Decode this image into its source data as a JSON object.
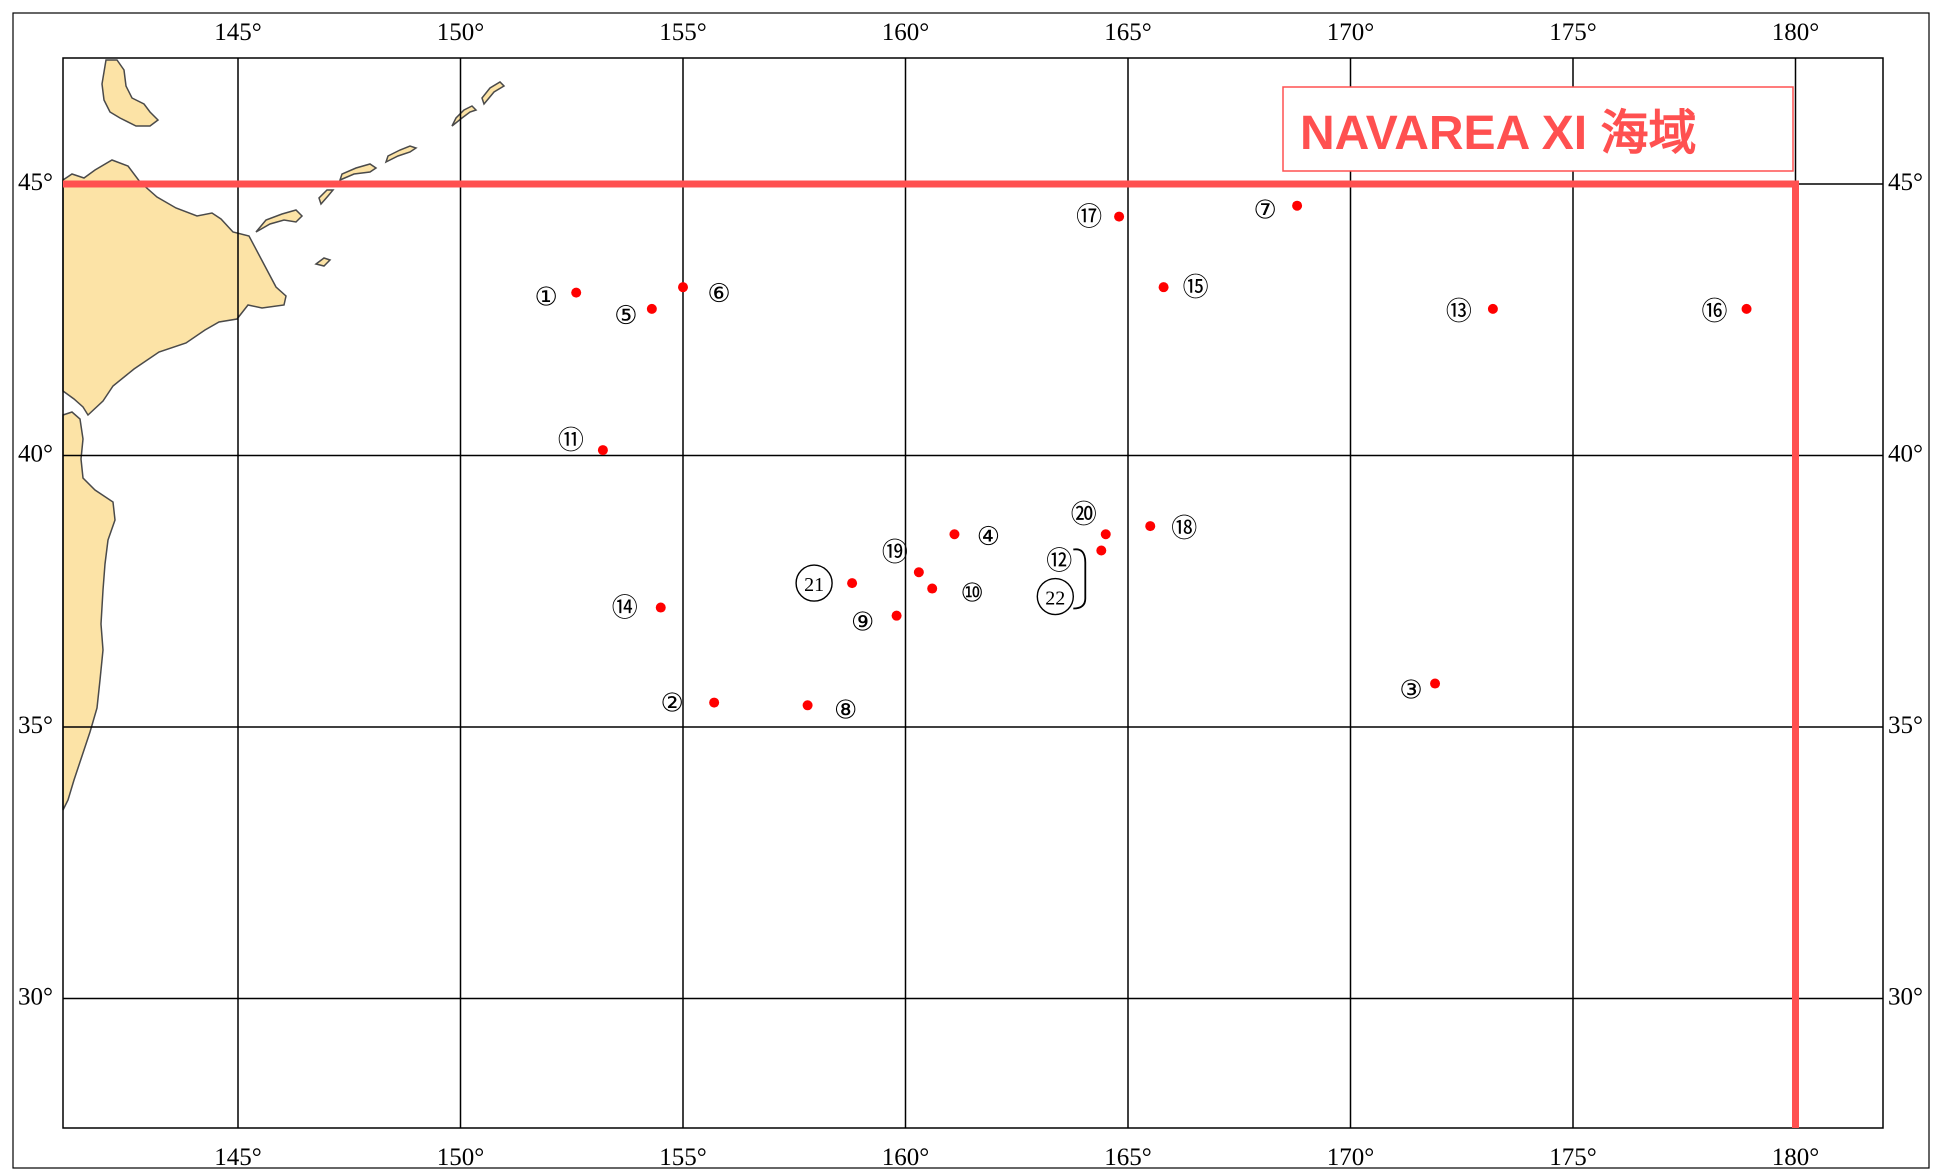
{
  "map": {
    "title": "NAVAREA XI 海域",
    "colors": {
      "land": "#fce3a6",
      "land_outline": "#4a4a4a",
      "grid": "#000000",
      "boundary": "#ff5050",
      "marker": "#ff0000"
    },
    "degree_symbol": "°",
    "longitude_ticks": [
      145,
      150,
      155,
      160,
      165,
      170,
      175,
      180
    ],
    "latitude_ticks": [
      45,
      40,
      35,
      30
    ],
    "extent": {
      "lon_min": 141,
      "lon_max": 182,
      "lat_min": 28,
      "lat_max": 47.3
    },
    "navarea_boundary": {
      "latitude": 45,
      "longitude": 180
    },
    "markers": [
      {
        "label": "①",
        "lon": 152.6,
        "lat": 43.0
      },
      {
        "label": "②",
        "lon": 155.7,
        "lat": 35.45
      },
      {
        "label": "③",
        "lon": 171.9,
        "lat": 35.8
      },
      {
        "label": "④",
        "lon": 161.1,
        "lat": 38.55
      },
      {
        "label": "⑤",
        "lon": 154.3,
        "lat": 42.7
      },
      {
        "label": "⑥",
        "lon": 155.0,
        "lat": 43.1
      },
      {
        "label": "⑦",
        "lon": 168.8,
        "lat": 44.6
      },
      {
        "label": "⑧",
        "lon": 157.8,
        "lat": 35.4
      },
      {
        "label": "⑨",
        "lon": 159.8,
        "lat": 37.05
      },
      {
        "label": "⑩",
        "lon": 160.6,
        "lat": 37.55
      },
      {
        "label": "⑪",
        "lon": 153.2,
        "lat": 40.1
      },
      {
        "label": "⑫",
        "lon": 164.4,
        "lat": 38.25
      },
      {
        "label": "⑬",
        "lon": 173.2,
        "lat": 42.7
      },
      {
        "label": "⑭",
        "lon": 154.5,
        "lat": 37.2
      },
      {
        "label": "⑮",
        "lon": 165.8,
        "lat": 43.1
      },
      {
        "label": "⑯",
        "lon": 178.9,
        "lat": 42.7
      },
      {
        "label": "⑰",
        "lon": 164.8,
        "lat": 44.4
      },
      {
        "label": "⑱",
        "lon": 165.5,
        "lat": 38.7
      },
      {
        "label": "⑲",
        "lon": 160.3,
        "lat": 37.85
      },
      {
        "label": "⑳",
        "lon": 164.5,
        "lat": 38.55
      },
      {
        "label": "21",
        "lon": 158.8,
        "lat": 37.65
      },
      {
        "label": "22",
        "lon": 164.4,
        "lat": 38.25
      }
    ]
  }
}
